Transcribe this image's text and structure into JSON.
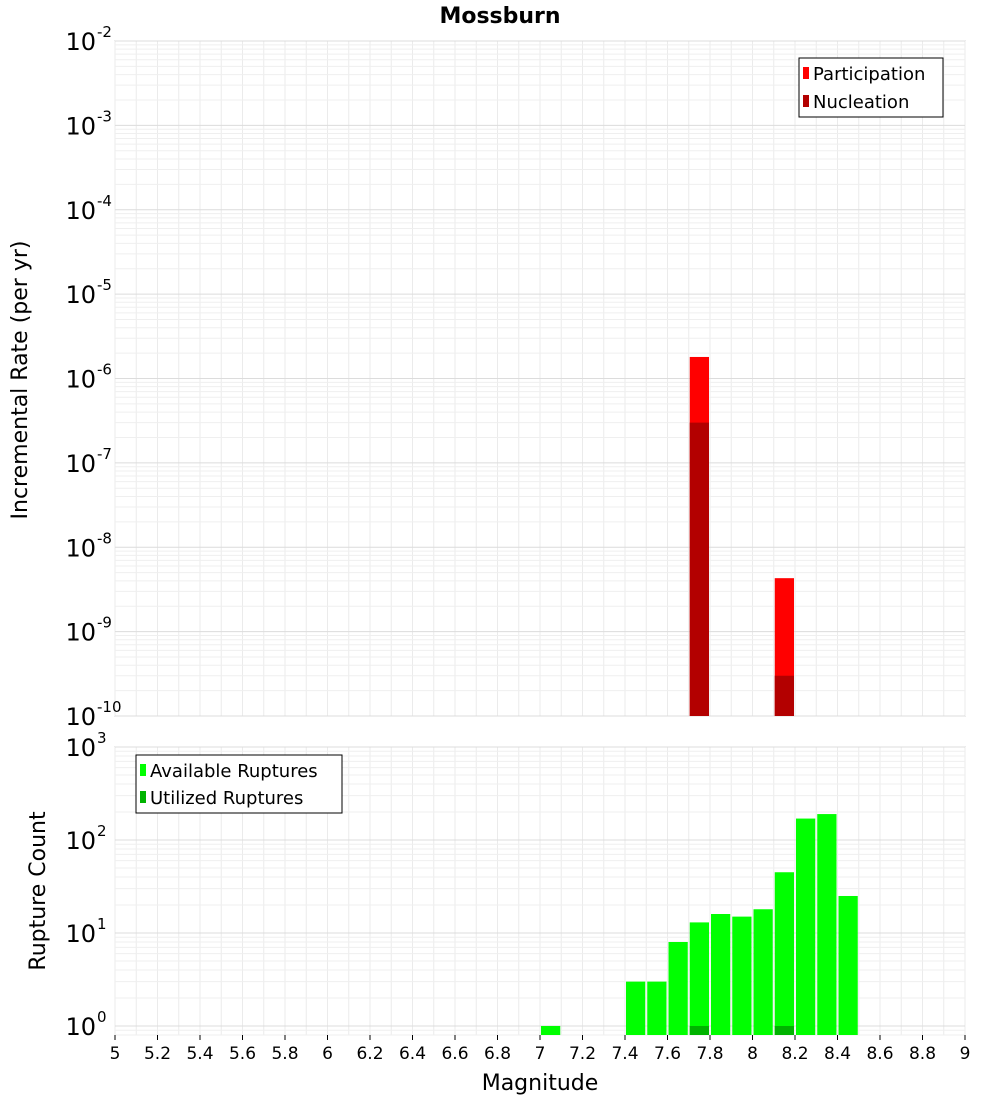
{
  "chart_data": [
    {
      "type": "bar",
      "title": "Mossburn",
      "ylabel": "Incremental Rate (per yr)",
      "yscale": "log",
      "ylim": [
        1e-10,
        0.01
      ],
      "xlim": [
        5,
        9
      ],
      "y_tick_bases": [
        "10",
        "10",
        "10",
        "10",
        "10",
        "10",
        "10",
        "10",
        "10"
      ],
      "y_tick_exponents": [
        "-10",
        "-9",
        "-8",
        "-7",
        "-6",
        "-5",
        "-4",
        "-3",
        "-2"
      ],
      "legend": {
        "position": "top-right",
        "entries": [
          "Participation",
          "Nucleation"
        ]
      },
      "colors": {
        "Participation": "#ff0000",
        "Nucleation": "#b30000"
      },
      "bar_width": 0.1,
      "series": [
        {
          "name": "Participation",
          "x": [
            7.75,
            8.15
          ],
          "values": [
            1.8e-06,
            4.3e-09
          ]
        },
        {
          "name": "Nucleation",
          "x": [
            7.75,
            8.15
          ],
          "values": [
            3e-07,
            3e-10
          ]
        }
      ],
      "grid": true
    },
    {
      "type": "bar",
      "ylabel": "Rupture Count",
      "xlabel": "Magnitude",
      "yscale": "log",
      "ylim": [
        0.8,
        1000
      ],
      "xlim": [
        5,
        9
      ],
      "x_ticks": [
        "5",
        "5.2",
        "5.4",
        "5.6",
        "5.8",
        "6",
        "6.2",
        "6.4",
        "6.6",
        "6.8",
        "7",
        "7.2",
        "7.4",
        "7.6",
        "7.8",
        "8",
        "8.2",
        "8.4",
        "8.6",
        "8.8",
        "9"
      ],
      "y_tick_bases": [
        "10",
        "10",
        "10",
        "10"
      ],
      "y_tick_exponents": [
        "0",
        "1",
        "2",
        "3"
      ],
      "legend": {
        "position": "top-left",
        "entries": [
          "Available Ruptures",
          "Utilized Ruptures"
        ]
      },
      "colors": {
        "Available Ruptures": "#00ff00",
        "Utilized Ruptures": "#00b300"
      },
      "bar_width": 0.1,
      "series": [
        {
          "name": "Available Ruptures",
          "x": [
            7.05,
            7.45,
            7.55,
            7.65,
            7.75,
            7.85,
            7.95,
            8.05,
            8.15,
            8.25,
            8.35,
            8.45
          ],
          "values": [
            1,
            3,
            3,
            8,
            13,
            16,
            15,
            18,
            45,
            170,
            190,
            25
          ]
        },
        {
          "name": "Utilized Ruptures",
          "x": [
            7.75,
            8.15
          ],
          "values": [
            1,
            1
          ]
        }
      ],
      "grid": true
    }
  ]
}
